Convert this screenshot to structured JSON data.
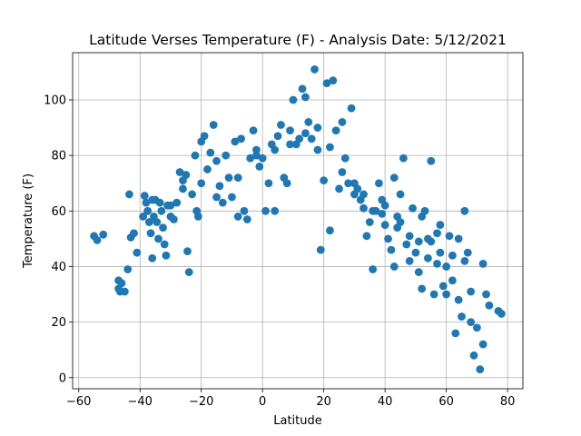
{
  "chart_data": {
    "type": "scatter",
    "title": "Latitude Verses Temperature (F) - Analysis Date: 5/12/2021",
    "xlabel": "Latitude",
    "ylabel": "Temperature (F)",
    "xlim": [
      -62,
      85
    ],
    "ylim": [
      -4,
      117
    ],
    "xticks": [
      -60,
      -40,
      -20,
      0,
      20,
      40,
      60,
      80
    ],
    "yticks": [
      0,
      20,
      40,
      60,
      80,
      100
    ],
    "grid": true,
    "marker_color": "#1f77b4",
    "series": [
      {
        "points": [
          [
            -55,
            51
          ],
          [
            -54,
            49.5
          ],
          [
            -52,
            51.5
          ],
          [
            -47,
            35
          ],
          [
            -47,
            32
          ],
          [
            -46.5,
            31
          ],
          [
            -46,
            34
          ],
          [
            -44,
            39
          ],
          [
            -43.5,
            66
          ],
          [
            -43,
            50.5
          ],
          [
            -42,
            52
          ],
          [
            -41,
            45
          ],
          [
            -39,
            58
          ],
          [
            -38.5,
            65.5
          ],
          [
            -38,
            63
          ],
          [
            -37.5,
            60
          ],
          [
            -37,
            56
          ],
          [
            -36.5,
            52
          ],
          [
            -36,
            43
          ],
          [
            -35.5,
            58
          ],
          [
            -35,
            64
          ],
          [
            -34.5,
            56
          ],
          [
            -34,
            50
          ],
          [
            -33.5,
            63
          ],
          [
            -33,
            60
          ],
          [
            -32.5,
            54
          ],
          [
            -32,
            48
          ],
          [
            -31.5,
            44
          ],
          [
            -31,
            62
          ],
          [
            -30,
            58
          ],
          [
            -29,
            57
          ],
          [
            -28,
            63
          ],
          [
            -27,
            74
          ],
          [
            -26,
            71
          ],
          [
            -25,
            73
          ],
          [
            -24.5,
            45.5
          ],
          [
            -24,
            38
          ],
          [
            -23,
            66
          ],
          [
            -22,
            80
          ],
          [
            -21.5,
            60
          ],
          [
            -21,
            58
          ],
          [
            -20,
            85
          ],
          [
            -19,
            87
          ],
          [
            -18,
            75
          ],
          [
            -17,
            81
          ],
          [
            -16,
            91
          ],
          [
            -15,
            65
          ],
          [
            -14,
            69
          ],
          [
            -13,
            63
          ],
          [
            -12,
            80
          ],
          [
            -11,
            72
          ],
          [
            -10,
            65
          ],
          [
            -9,
            85
          ],
          [
            -8,
            58
          ],
          [
            -7,
            86
          ],
          [
            -6,
            60
          ],
          [
            -5,
            57
          ],
          [
            -4,
            79
          ],
          [
            -3,
            89
          ],
          [
            -2,
            82
          ],
          [
            -1,
            76
          ],
          [
            0,
            79
          ],
          [
            1,
            60
          ],
          [
            2,
            70
          ],
          [
            3,
            84
          ],
          [
            4,
            60
          ],
          [
            5,
            87
          ],
          [
            6,
            91
          ],
          [
            7,
            72
          ],
          [
            8,
            70
          ],
          [
            9,
            89
          ],
          [
            10,
            100
          ],
          [
            11,
            84
          ],
          [
            12,
            86
          ],
          [
            13,
            104
          ],
          [
            14,
            101
          ],
          [
            15,
            92
          ],
          [
            16,
            86
          ],
          [
            17,
            111
          ],
          [
            18,
            90
          ],
          [
            19,
            46
          ],
          [
            20,
            71
          ],
          [
            21,
            106
          ],
          [
            22,
            53
          ],
          [
            23,
            107
          ],
          [
            24,
            89
          ],
          [
            25,
            68
          ],
          [
            26,
            92
          ],
          [
            27,
            79
          ],
          [
            28,
            70
          ],
          [
            29,
            97
          ],
          [
            30,
            66
          ],
          [
            31,
            68
          ],
          [
            32,
            64
          ],
          [
            33,
            61
          ],
          [
            34,
            51
          ],
          [
            35,
            56
          ],
          [
            36,
            39
          ],
          [
            37,
            60
          ],
          [
            38,
            70
          ],
          [
            39,
            64
          ],
          [
            40,
            55
          ],
          [
            41,
            50
          ],
          [
            42,
            46
          ],
          [
            43,
            40
          ],
          [
            44,
            58
          ],
          [
            45,
            56
          ],
          [
            46,
            79
          ],
          [
            47,
            48
          ],
          [
            48,
            42
          ],
          [
            49,
            61
          ],
          [
            50,
            45
          ],
          [
            51,
            38
          ],
          [
            52,
            32
          ],
          [
            53,
            60
          ],
          [
            54,
            50
          ],
          [
            55,
            78
          ],
          [
            56,
            30
          ],
          [
            57,
            41
          ],
          [
            58,
            55
          ],
          [
            59,
            33
          ],
          [
            60,
            40
          ],
          [
            61,
            51
          ],
          [
            62,
            35
          ],
          [
            63,
            16
          ],
          [
            64,
            28
          ],
          [
            65,
            22
          ],
          [
            66,
            60
          ],
          [
            67,
            45
          ],
          [
            68,
            20
          ],
          [
            69,
            8
          ],
          [
            70,
            18
          ],
          [
            71,
            3
          ],
          [
            72,
            12
          ],
          [
            73,
            30
          ],
          [
            74,
            26
          ],
          [
            77,
            24
          ],
          [
            78,
            23
          ],
          [
            43,
            72
          ],
          [
            45,
            66
          ],
          [
            39,
            59
          ],
          [
            52,
            58
          ],
          [
            55,
            49
          ],
          [
            58,
            45
          ],
          [
            62,
            44
          ],
          [
            66,
            42
          ],
          [
            -45,
            31
          ],
          [
            -36,
            64
          ],
          [
            -30,
            62
          ],
          [
            -26,
            68
          ],
          [
            -20,
            70
          ],
          [
            -15,
            78
          ],
          [
            -8,
            72
          ],
          [
            -2,
            80
          ],
          [
            4,
            82
          ],
          [
            9,
            84
          ],
          [
            14,
            88
          ],
          [
            18,
            82
          ],
          [
            22,
            83
          ],
          [
            26,
            74
          ],
          [
            30,
            70
          ],
          [
            33,
            66
          ],
          [
            36,
            60
          ],
          [
            40,
            62
          ],
          [
            44,
            54
          ],
          [
            48,
            51
          ],
          [
            51,
            49
          ],
          [
            54,
            43
          ],
          [
            57,
            52
          ],
          [
            60,
            30
          ],
          [
            64,
            50
          ],
          [
            68,
            31
          ],
          [
            72,
            41
          ]
        ]
      }
    ]
  }
}
